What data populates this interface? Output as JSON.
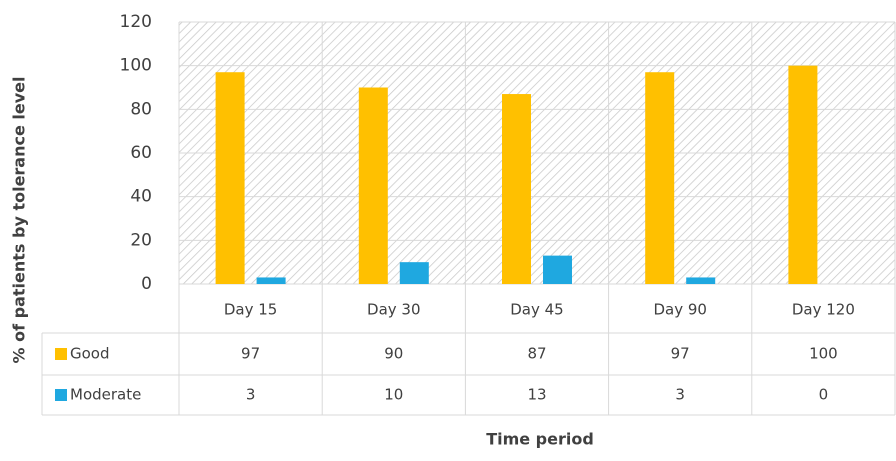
{
  "chart_data": {
    "type": "bar",
    "y_label": "% of patients by tolerance level",
    "x_label": "Time period",
    "categories": [
      "Day 15",
      "Day 30",
      "Day 45",
      "Day 90",
      "Day 120"
    ],
    "series": [
      {
        "name": "Good",
        "color": "#ffc000",
        "values": [
          97,
          90,
          87,
          97,
          100
        ]
      },
      {
        "name": "Moderate",
        "color": "#1fa8e0",
        "values": [
          3,
          10,
          13,
          3,
          0
        ]
      }
    ],
    "ylim": [
      0,
      120
    ],
    "yticks": [
      0,
      20,
      40,
      60,
      80,
      100,
      120
    ],
    "grid": true,
    "data_table": true
  }
}
